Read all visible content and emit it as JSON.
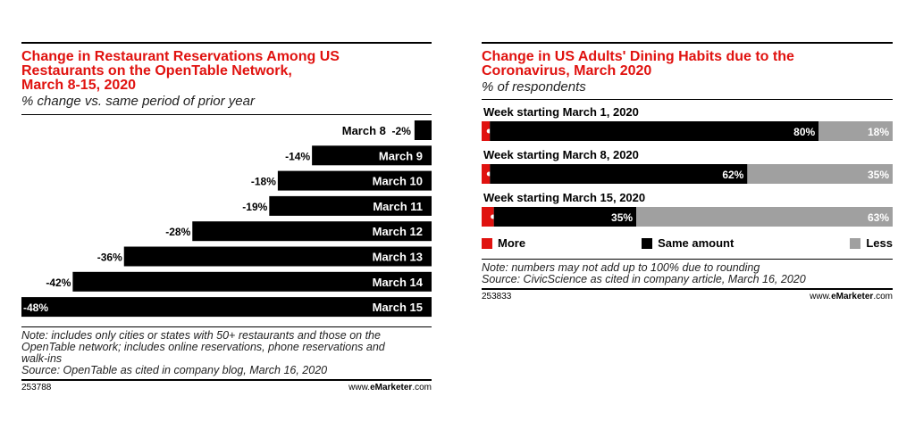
{
  "left": {
    "title_line1": "Change in Restaurant Reservations Among US",
    "title_line2": "Restaurants on the OpenTable Network,",
    "title_line3": "March 8-15, 2020",
    "subtitle": "% change vs. same period of prior year",
    "note_line1": "Note: includes only cities or states with 50+ restaurants and those on the",
    "note_line2": "OpenTable network; includes online reservations, phone reservations and",
    "note_line3": "walk-ins",
    "source": "Source: OpenTable as cited in company blog, March 16, 2020",
    "chart_id": "253788",
    "site_prefix": "www.",
    "site_brand": "eMarketer",
    "site_suffix": ".com"
  },
  "right": {
    "title_line1": "Change in US Adults' Dining Habits due to the",
    "title_line2": "Coronavirus, March 2020",
    "subtitle": "% of respondents",
    "legend": {
      "more": "More",
      "same": "Same amount",
      "less": "Less"
    },
    "note": "Note: numbers may not add up to 100% due to rounding",
    "source": "Source: CivicScience as cited in company article, March 16, 2020",
    "chart_id": "253833",
    "site_prefix": "www.",
    "site_brand": "eMarketer",
    "site_suffix": ".com"
  },
  "colors": {
    "red": "#e0120f",
    "black": "#000000",
    "gray": "#a0a0a0"
  },
  "chart_data": [
    {
      "type": "bar",
      "title": "Change in Restaurant Reservations Among US Restaurants on the OpenTable Network, March 8-15, 2020",
      "subtitle": "% change vs. same period of prior year",
      "categories": [
        "March 8",
        "March 9",
        "March 10",
        "March 11",
        "March 12",
        "March 13",
        "March 14",
        "March 15"
      ],
      "values": [
        -2,
        -14,
        -18,
        -19,
        -28,
        -36,
        -42,
        -48
      ],
      "value_labels": [
        "-2%",
        "-14%",
        "-18%",
        "-19%",
        "-28%",
        "-36%",
        "-42%",
        "-48%"
      ],
      "xlim": [
        -48,
        0
      ]
    },
    {
      "type": "bar",
      "stacked": true,
      "title": "Change in US Adults' Dining Habits due to the Coronavirus, March 2020",
      "subtitle": "% of respondents",
      "categories": [
        "Week starting March 1, 2020",
        "Week starting March 8, 2020",
        "Week starting March 15, 2020"
      ],
      "series": [
        {
          "name": "More",
          "values": [
            2,
            2,
            3
          ],
          "labels": [
            "2%",
            "2%",
            "3%"
          ]
        },
        {
          "name": "Same amount",
          "values": [
            80,
            62,
            35
          ],
          "labels": [
            "80%",
            "62%",
            "35%"
          ]
        },
        {
          "name": "Less",
          "values": [
            18,
            35,
            63
          ],
          "labels": [
            "18%",
            "35%",
            "63%"
          ]
        }
      ],
      "legend": "bottom"
    }
  ]
}
